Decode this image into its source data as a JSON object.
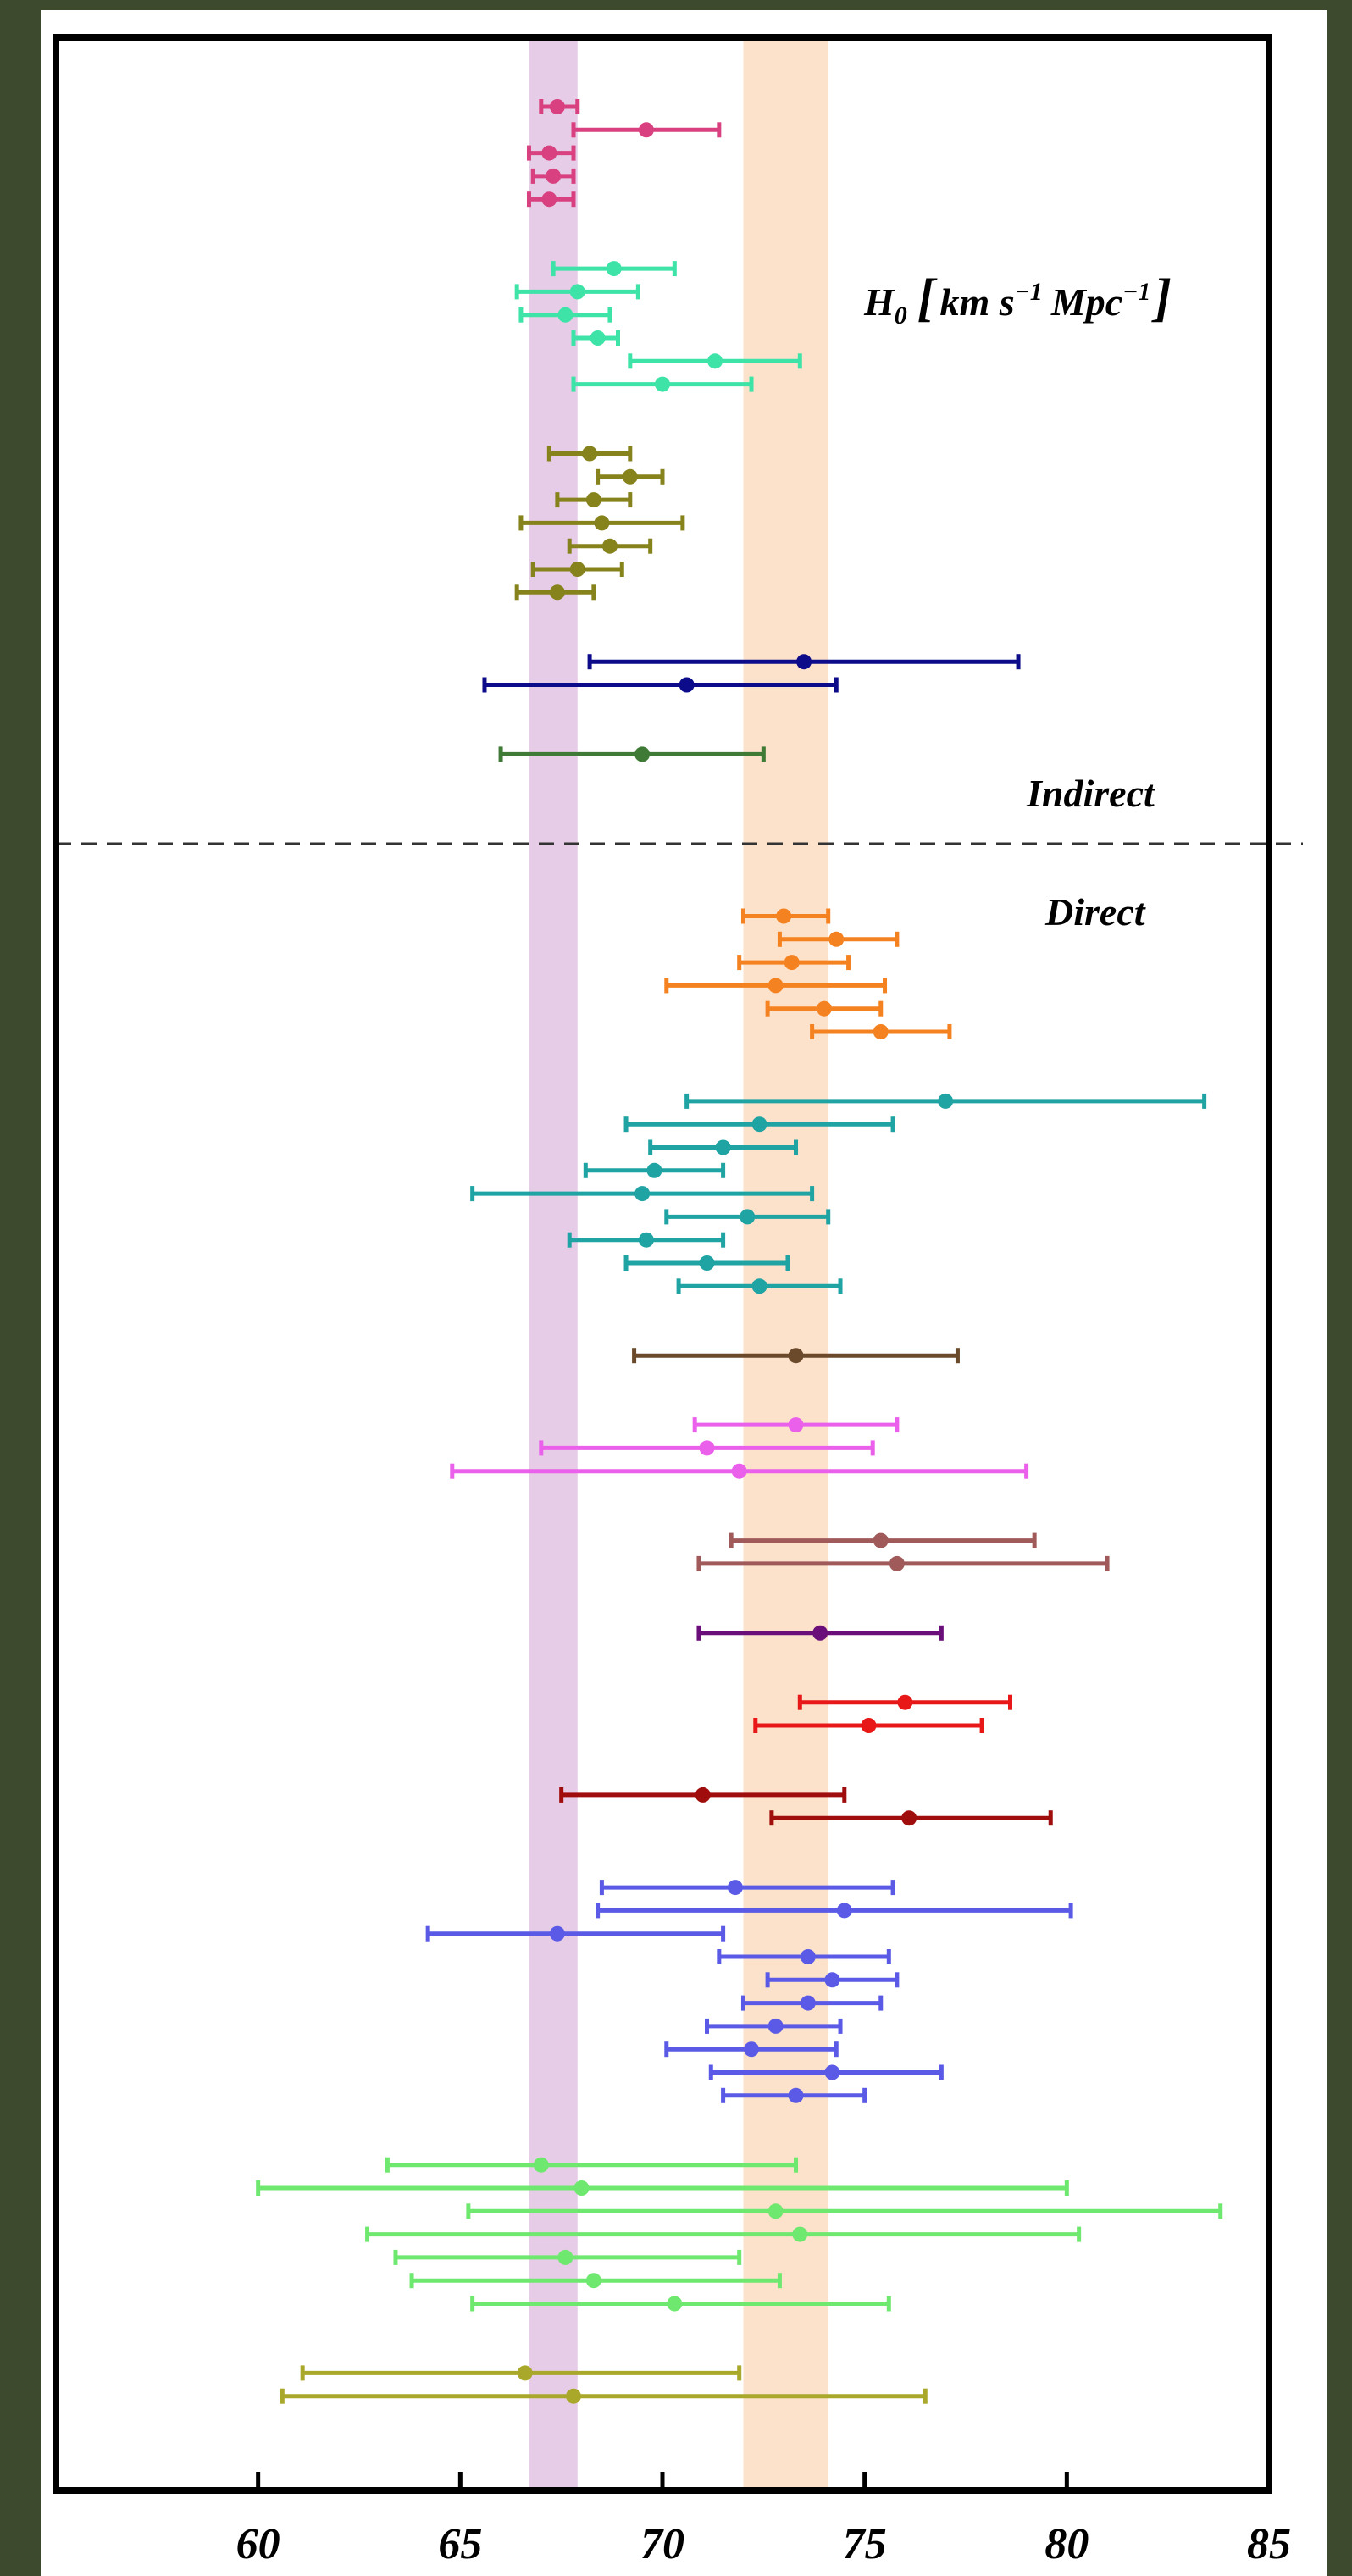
{
  "chart_data": {
    "type": "scatter",
    "subtype": "errorbar",
    "xlim": [
      55,
      85
    ],
    "xticks": [
      "60",
      "65",
      "70",
      "75",
      "80",
      "85"
    ],
    "grid": false,
    "bands": [
      {
        "name": "purple-band",
        "low": 66.7,
        "high": 67.9,
        "color": "#e6cce6"
      },
      {
        "name": "orange-band",
        "low": 72.0,
        "high": 74.1,
        "color": "#fde2cb"
      }
    ],
    "annotations": {
      "units_prefix": "H",
      "units_sub": "0",
      "units_body": "km s",
      "units_exp1": "−1",
      "units_mpc": "Mpc",
      "units_exp2": "−1",
      "indirect": "Indirect",
      "direct": "Direct"
    },
    "series": [
      {
        "color": "#d8407f",
        "points": [
          {
            "row": 1,
            "x": 67.4,
            "lo": 67.0,
            "hi": 67.9
          },
          {
            "row": 2,
            "x": 69.6,
            "lo": 67.8,
            "hi": 71.4
          },
          {
            "row": 3,
            "x": 67.2,
            "lo": 66.7,
            "hi": 67.8
          },
          {
            "row": 4,
            "x": 67.3,
            "lo": 66.8,
            "hi": 67.8
          },
          {
            "row": 5,
            "x": 67.2,
            "lo": 66.7,
            "hi": 67.8
          }
        ]
      },
      {
        "color": "#3ee3a8",
        "points": [
          {
            "row": 8,
            "x": 68.8,
            "lo": 67.3,
            "hi": 70.3
          },
          {
            "row": 9,
            "x": 67.9,
            "lo": 66.4,
            "hi": 69.4
          },
          {
            "row": 10,
            "x": 67.6,
            "lo": 66.5,
            "hi": 68.7
          },
          {
            "row": 11,
            "x": 68.4,
            "lo": 67.8,
            "hi": 68.9
          },
          {
            "row": 12,
            "x": 71.3,
            "lo": 69.2,
            "hi": 73.4
          },
          {
            "row": 13,
            "x": 70.0,
            "lo": 67.8,
            "hi": 72.2
          }
        ]
      },
      {
        "color": "#86821c",
        "points": [
          {
            "row": 16,
            "x": 68.2,
            "lo": 67.2,
            "hi": 69.2
          },
          {
            "row": 17,
            "x": 69.2,
            "lo": 68.4,
            "hi": 70.0
          },
          {
            "row": 18,
            "x": 68.3,
            "lo": 67.4,
            "hi": 69.2
          },
          {
            "row": 19,
            "x": 68.5,
            "lo": 66.5,
            "hi": 70.5
          },
          {
            "row": 20,
            "x": 68.7,
            "lo": 67.7,
            "hi": 69.7
          },
          {
            "row": 21,
            "x": 67.9,
            "lo": 66.8,
            "hi": 69.0
          },
          {
            "row": 22,
            "x": 67.4,
            "lo": 66.4,
            "hi": 68.3
          }
        ]
      },
      {
        "color": "#0c0c8a",
        "points": [
          {
            "row": 25,
            "x": 73.5,
            "lo": 68.2,
            "hi": 78.8
          },
          {
            "row": 26,
            "x": 70.6,
            "lo": 65.6,
            "hi": 74.3
          }
        ]
      },
      {
        "color": "#3f7a36",
        "points": [
          {
            "row": 29,
            "x": 69.5,
            "lo": 66.0,
            "hi": 72.5
          }
        ]
      },
      {
        "color": "#f58220",
        "points": [
          {
            "row": 36,
            "x": 73.0,
            "lo": 72.0,
            "hi": 74.1
          },
          {
            "row": 37,
            "x": 74.3,
            "lo": 72.9,
            "hi": 75.8
          },
          {
            "row": 38,
            "x": 73.2,
            "lo": 71.9,
            "hi": 74.6
          },
          {
            "row": 39,
            "x": 72.8,
            "lo": 70.1,
            "hi": 75.5
          },
          {
            "row": 40,
            "x": 74.0,
            "lo": 72.6,
            "hi": 75.4
          },
          {
            "row": 41,
            "x": 75.4,
            "lo": 73.7,
            "hi": 77.1
          }
        ]
      },
      {
        "color": "#1fa3a3",
        "points": [
          {
            "row": 44,
            "x": 77.0,
            "lo": 70.6,
            "hi": 83.4
          },
          {
            "row": 45,
            "x": 72.4,
            "lo": 69.1,
            "hi": 75.7
          },
          {
            "row": 46,
            "x": 71.5,
            "lo": 69.7,
            "hi": 73.3
          },
          {
            "row": 47,
            "x": 69.8,
            "lo": 68.1,
            "hi": 71.5
          },
          {
            "row": 48,
            "x": 69.5,
            "lo": 65.3,
            "hi": 73.7
          },
          {
            "row": 49,
            "x": 72.1,
            "lo": 70.1,
            "hi": 74.1
          },
          {
            "row": 50,
            "x": 69.6,
            "lo": 67.7,
            "hi": 71.5
          },
          {
            "row": 51,
            "x": 71.1,
            "lo": 69.1,
            "hi": 73.1
          },
          {
            "row": 52,
            "x": 72.4,
            "lo": 70.4,
            "hi": 74.4
          }
        ]
      },
      {
        "color": "#6a4a2a",
        "points": [
          {
            "row": 55,
            "x": 73.3,
            "lo": 69.3,
            "hi": 77.3
          }
        ]
      },
      {
        "color": "#ea60ea",
        "points": [
          {
            "row": 58,
            "x": 73.3,
            "lo": 70.8,
            "hi": 75.8
          },
          {
            "row": 59,
            "x": 71.1,
            "lo": 67.0,
            "hi": 75.2
          },
          {
            "row": 60,
            "x": 71.9,
            "lo": 64.8,
            "hi": 79.0
          }
        ]
      },
      {
        "color": "#a05a5a",
        "points": [
          {
            "row": 63,
            "x": 75.4,
            "lo": 71.7,
            "hi": 79.2
          },
          {
            "row": 64,
            "x": 75.8,
            "lo": 70.9,
            "hi": 81.0
          }
        ]
      },
      {
        "color": "#6a0f7a",
        "points": [
          {
            "row": 67,
            "x": 73.9,
            "lo": 70.9,
            "hi": 76.9
          }
        ]
      },
      {
        "color": "#e81818",
        "points": [
          {
            "row": 70,
            "x": 76.0,
            "lo": 73.4,
            "hi": 78.6
          },
          {
            "row": 71,
            "x": 75.1,
            "lo": 72.3,
            "hi": 77.9
          }
        ]
      },
      {
        "color": "#a00d0d",
        "points": [
          {
            "row": 74,
            "x": 71.0,
            "lo": 67.5,
            "hi": 74.5
          },
          {
            "row": 75,
            "x": 76.1,
            "lo": 72.7,
            "hi": 79.6
          }
        ]
      },
      {
        "color": "#5a5ae6",
        "points": [
          {
            "row": 78,
            "x": 71.8,
            "lo": 68.5,
            "hi": 75.7
          },
          {
            "row": 79,
            "x": 74.5,
            "lo": 68.4,
            "hi": 80.1
          },
          {
            "row": 80,
            "x": 67.4,
            "lo": 64.2,
            "hi": 71.5
          },
          {
            "row": 81,
            "x": 73.6,
            "lo": 71.4,
            "hi": 75.6
          },
          {
            "row": 82,
            "x": 74.2,
            "lo": 72.6,
            "hi": 75.8
          },
          {
            "row": 83,
            "x": 73.6,
            "lo": 72.0,
            "hi": 75.4
          },
          {
            "row": 84,
            "x": 72.8,
            "lo": 71.1,
            "hi": 74.4
          },
          {
            "row": 85,
            "x": 72.2,
            "lo": 70.1,
            "hi": 74.3
          },
          {
            "row": 86,
            "x": 74.2,
            "lo": 71.2,
            "hi": 76.9
          },
          {
            "row": 87,
            "x": 73.3,
            "lo": 71.5,
            "hi": 75.0
          }
        ]
      },
      {
        "color": "#6fe86f",
        "points": [
          {
            "row": 90,
            "x": 67.0,
            "lo": 63.2,
            "hi": 73.3
          },
          {
            "row": 91,
            "x": 68.0,
            "lo": 60.0,
            "hi": 80.0
          },
          {
            "row": 92,
            "x": 72.8,
            "lo": 65.2,
            "hi": 83.8
          },
          {
            "row": 93,
            "x": 73.4,
            "lo": 62.7,
            "hi": 80.3
          },
          {
            "row": 94,
            "x": 67.6,
            "lo": 63.4,
            "hi": 71.9
          },
          {
            "row": 95,
            "x": 68.3,
            "lo": 63.8,
            "hi": 72.9
          },
          {
            "row": 96,
            "x": 70.3,
            "lo": 65.3,
            "hi": 75.6
          }
        ]
      },
      {
        "color": "#aaa82a",
        "points": [
          {
            "row": 99,
            "x": 66.6,
            "lo": 61.1,
            "hi": 71.9
          },
          {
            "row": 100,
            "x": 67.8,
            "lo": 60.6,
            "hi": 76.5
          }
        ]
      }
    ]
  }
}
